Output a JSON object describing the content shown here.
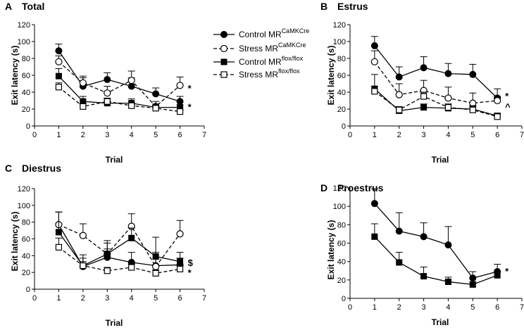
{
  "chart_data": [
    {
      "type": "line",
      "letter": "A",
      "title": "Total",
      "xlabel": "Trial",
      "ylabel": "Exit latency (s)",
      "x": [
        1,
        2,
        3,
        4,
        5,
        6
      ],
      "xlim": [
        0,
        7
      ],
      "ylim": [
        0,
        120
      ],
      "xticks": [
        "0",
        "1",
        "2",
        "3",
        "4",
        "5",
        "6",
        "7"
      ],
      "yticks": [
        "0",
        "20",
        "40",
        "60",
        "80",
        "100",
        "120"
      ],
      "legend": {
        "position": "right",
        "entries": [
          {
            "base": "Control MR",
            "sup": "CaMKCre"
          },
          {
            "base": "Stress MR",
            "sup": "CaMKCre"
          },
          {
            "base": "Control MR",
            "sup": "flox/flox"
          },
          {
            "base": "Stress MR",
            "sup": "flox/flox"
          }
        ]
      },
      "series": [
        {
          "name": "Control MR CaMKCre",
          "marker": "filled-circle",
          "dash": "solid",
          "values": [
            89,
            47,
            55,
            47,
            38,
            29
          ],
          "errors": [
            8,
            10,
            8,
            10,
            7,
            6
          ]
        },
        {
          "name": "Stress MR CaMKCre",
          "marker": "open-circle",
          "dash": "dashed",
          "values": [
            76,
            51,
            39,
            54,
            23,
            48
          ],
          "errors": [
            7,
            8,
            8,
            11,
            6,
            10
          ]
        },
        {
          "name": "Control MR flox/flox",
          "marker": "filled-square",
          "dash": "solid",
          "values": [
            59,
            29,
            27,
            27,
            22,
            22
          ],
          "errors": [
            9,
            6,
            5,
            5,
            4,
            3
          ]
        },
        {
          "name": "Stress MR flox/flox",
          "marker": "open-square",
          "dash": "dashed",
          "values": [
            46,
            23,
            29,
            24,
            21,
            17
          ],
          "errors": [
            5,
            3,
            4,
            3,
            3,
            2
          ]
        }
      ],
      "annotations": [
        {
          "text": "*",
          "x": 6,
          "y": 45
        },
        {
          "text": "*",
          "x": 6,
          "y": 23
        }
      ]
    },
    {
      "type": "line",
      "letter": "B",
      "title": "Estrus",
      "xlabel": "Trial",
      "ylabel": "Exit latency (s)",
      "x": [
        1,
        2,
        3,
        4,
        5,
        6
      ],
      "xlim": [
        0,
        7
      ],
      "ylim": [
        0,
        120
      ],
      "xticks": [
        "0",
        "1",
        "2",
        "3",
        "4",
        "5",
        "6",
        "7"
      ],
      "yticks": [
        "0",
        "20",
        "40",
        "60",
        "80",
        "100",
        "120"
      ],
      "series": [
        {
          "name": "Control MR CaMKCre",
          "marker": "filled-circle",
          "dash": "solid",
          "values": [
            95,
            58,
            69,
            62,
            61,
            33
          ],
          "errors": [
            11,
            12,
            13,
            12,
            12,
            11
          ]
        },
        {
          "name": "Stress MR CaMKCre",
          "marker": "open-circle",
          "dash": "dashed",
          "values": [
            76,
            37,
            42,
            33,
            27,
            30
          ],
          "errors": [
            13,
            13,
            12,
            13,
            12,
            5
          ]
        },
        {
          "name": "Control MR flox/flox",
          "marker": "filled-square",
          "dash": "solid",
          "values": [
            44,
            18,
            22,
            21,
            20,
            12
          ],
          "errors": [
            17,
            5,
            4,
            5,
            4,
            3
          ]
        },
        {
          "name": "Stress MR flox/flox",
          "marker": "open-square",
          "dash": "dashed",
          "values": [
            41,
            19,
            35,
            22,
            19,
            11
          ],
          "errors": [
            6,
            3,
            5,
            4,
            3,
            3
          ]
        }
      ],
      "annotations": [
        {
          "text": "*",
          "x": 6,
          "y": 36
        },
        {
          "text": "^",
          "x": 6,
          "y": 23
        }
      ]
    },
    {
      "type": "line",
      "letter": "C",
      "title": "Diestrus",
      "xlabel": "Trial",
      "ylabel": "Exit latency (s)",
      "x": [
        1,
        2,
        3,
        4,
        5,
        6
      ],
      "xlim": [
        0,
        7
      ],
      "ylim": [
        0,
        120
      ],
      "xticks": [
        "0",
        "1",
        "2",
        "3",
        "4",
        "5",
        "6",
        "7"
      ],
      "yticks": [
        "0",
        "20",
        "40",
        "60",
        "80",
        "100",
        "120"
      ],
      "series": [
        {
          "name": "Control MR CaMKCre",
          "marker": "filled-circle",
          "dash": "solid",
          "values": [
            77,
            27,
            38,
            32,
            28,
            29
          ],
          "errors": [
            15,
            10,
            10,
            12,
            8,
            8
          ]
        },
        {
          "name": "Stress MR CaMKCre",
          "marker": "open-circle",
          "dash": "dashed",
          "values": [
            77,
            64,
            42,
            75,
            27,
            66
          ],
          "errors": [
            15,
            14,
            16,
            15,
            17,
            16
          ]
        },
        {
          "name": "Control MR flox/flox",
          "marker": "filled-square",
          "dash": "solid",
          "values": [
            68,
            28,
            42,
            61,
            39,
            33
          ],
          "errors": [
            24,
            13,
            13,
            12,
            23,
            11
          ]
        },
        {
          "name": "Stress MR flox/flox",
          "marker": "open-square",
          "dash": "dashed",
          "values": [
            50,
            28,
            22,
            26,
            19,
            24
          ],
          "errors": [
            11,
            5,
            4,
            4,
            4,
            4
          ]
        }
      ],
      "annotations": [
        {
          "text": "$",
          "x": 6,
          "y": 32
        },
        {
          "text": "*",
          "x": 6,
          "y": 20
        }
      ]
    },
    {
      "type": "line",
      "letter": "D",
      "title": "Proestrus",
      "xlabel": "Trial",
      "ylabel": "Exit latency (s)",
      "x": [
        1,
        2,
        3,
        4,
        5,
        6
      ],
      "xlim": [
        0,
        7
      ],
      "ylim": [
        0,
        120
      ],
      "xticks": [
        "0",
        "1",
        "2",
        "3",
        "4",
        "5",
        "6",
        "7"
      ],
      "yticks": [
        "0",
        "20",
        "40",
        "60",
        "80",
        "100",
        "120"
      ],
      "series": [
        {
          "name": "Control MR CaMKCre",
          "marker": "filled-circle",
          "dash": "solid",
          "values": [
            103,
            73,
            67,
            58,
            22,
            29
          ],
          "errors": [
            16,
            20,
            15,
            20,
            7,
            8
          ]
        },
        {
          "name": "Control MR flox/flox",
          "marker": "filled-square",
          "dash": "solid",
          "values": [
            67,
            39,
            24,
            18,
            15,
            25
          ],
          "errors": [
            14,
            11,
            10,
            5,
            3,
            4
          ]
        }
      ],
      "annotations": [
        {
          "text": "*",
          "x": 6,
          "y": 30
        }
      ]
    }
  ]
}
